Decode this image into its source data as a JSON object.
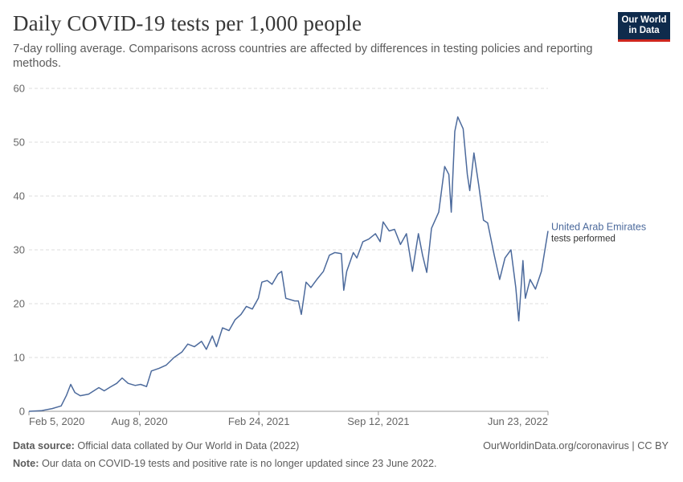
{
  "header": {
    "title": "Daily COVID-19 tests per 1,000 people",
    "subtitle": "7-day rolling average. Comparisons across countries are affected by differences in testing policies and reporting methods."
  },
  "logo": {
    "line1": "Our World",
    "line2": "in Data",
    "bg_color": "#0f2b4c",
    "accent_color": "#ce261e"
  },
  "footer": {
    "source_label": "Data source:",
    "source_text": "Official data collated by Our World in Data (2022)",
    "url_text": "OurWorldinData.org/coronavirus | CC BY",
    "note_label": "Note:",
    "note_text": "Our data on COVID-19 tests and positive rate is no longer updated since 23 June 2022."
  },
  "chart_data": {
    "type": "line",
    "title": "Daily COVID-19 tests per 1,000 people",
    "xlabel": "",
    "ylabel": "",
    "xlim": [
      "2020-02-05",
      "2022-06-23"
    ],
    "ylim": [
      0,
      60
    ],
    "yticks": [
      0,
      10,
      20,
      30,
      40,
      50,
      60
    ],
    "xticks": [
      {
        "date": "2020-02-05",
        "label": "Feb 5, 2020"
      },
      {
        "date": "2020-08-08",
        "label": "Aug 8, 2020"
      },
      {
        "date": "2021-02-24",
        "label": "Feb 24, 2021"
      },
      {
        "date": "2021-09-12",
        "label": "Sep 12, 2021"
      },
      {
        "date": "2022-06-23",
        "label": "Jun 23, 2022"
      }
    ],
    "grid": "horizontal-dashed",
    "series": [
      {
        "name": "United Arab Emirates",
        "annotation": "tests performed",
        "color": "#4c6a9c",
        "points": [
          [
            "2020-02-05",
            0
          ],
          [
            "2020-02-25",
            0.1
          ],
          [
            "2020-03-15",
            0.5
          ],
          [
            "2020-03-30",
            1.0
          ],
          [
            "2020-04-08",
            3.0
          ],
          [
            "2020-04-15",
            5.0
          ],
          [
            "2020-04-22",
            3.5
          ],
          [
            "2020-05-01",
            2.9
          ],
          [
            "2020-05-15",
            3.2
          ],
          [
            "2020-06-01",
            4.4
          ],
          [
            "2020-06-10",
            3.8
          ],
          [
            "2020-06-20",
            4.5
          ],
          [
            "2020-07-01",
            5.2
          ],
          [
            "2020-07-10",
            6.2
          ],
          [
            "2020-07-20",
            5.2
          ],
          [
            "2020-08-01",
            4.8
          ],
          [
            "2020-08-10",
            5.0
          ],
          [
            "2020-08-20",
            4.6
          ],
          [
            "2020-08-28",
            7.5
          ],
          [
            "2020-09-10",
            8.0
          ],
          [
            "2020-09-22",
            8.6
          ],
          [
            "2020-10-05",
            10.0
          ],
          [
            "2020-10-18",
            11.0
          ],
          [
            "2020-10-28",
            12.5
          ],
          [
            "2020-11-08",
            12.0
          ],
          [
            "2020-11-20",
            13.0
          ],
          [
            "2020-11-28",
            11.5
          ],
          [
            "2020-12-08",
            14.0
          ],
          [
            "2020-12-15",
            12.0
          ],
          [
            "2020-12-25",
            15.5
          ],
          [
            "2021-01-05",
            15.0
          ],
          [
            "2021-01-15",
            17.0
          ],
          [
            "2021-01-25",
            18.0
          ],
          [
            "2021-02-03",
            19.5
          ],
          [
            "2021-02-13",
            19.0
          ],
          [
            "2021-02-23",
            21.0
          ],
          [
            "2021-03-01",
            24.0
          ],
          [
            "2021-03-10",
            24.3
          ],
          [
            "2021-03-18",
            23.6
          ],
          [
            "2021-03-28",
            25.5
          ],
          [
            "2021-04-03",
            26.0
          ],
          [
            "2021-04-10",
            21.0
          ],
          [
            "2021-04-25",
            20.5
          ],
          [
            "2021-05-01",
            20.5
          ],
          [
            "2021-05-06",
            18.0
          ],
          [
            "2021-05-14",
            24.0
          ],
          [
            "2021-05-22",
            23.0
          ],
          [
            "2021-06-01",
            24.5
          ],
          [
            "2021-06-12",
            26.0
          ],
          [
            "2021-06-22",
            29.0
          ],
          [
            "2021-07-01",
            29.5
          ],
          [
            "2021-07-12",
            29.3
          ],
          [
            "2021-07-16",
            22.5
          ],
          [
            "2021-07-21",
            26.0
          ],
          [
            "2021-08-01",
            29.5
          ],
          [
            "2021-08-07",
            28.5
          ],
          [
            "2021-08-17",
            31.5
          ],
          [
            "2021-08-27",
            32.0
          ],
          [
            "2021-09-07",
            33.0
          ],
          [
            "2021-09-15",
            31.5
          ],
          [
            "2021-09-20",
            35.2
          ],
          [
            "2021-09-30",
            33.5
          ],
          [
            "2021-10-09",
            33.8
          ],
          [
            "2021-10-19",
            31.0
          ],
          [
            "2021-10-29",
            33.0
          ],
          [
            "2021-11-08",
            26.0
          ],
          [
            "2021-11-18",
            33.0
          ],
          [
            "2021-11-25",
            29.0
          ],
          [
            "2021-12-02",
            25.8
          ],
          [
            "2021-12-10",
            34.0
          ],
          [
            "2021-12-22",
            37.0
          ],
          [
            "2022-01-01",
            45.5
          ],
          [
            "2022-01-08",
            44.0
          ],
          [
            "2022-01-12",
            37.0
          ],
          [
            "2022-01-18",
            52.0
          ],
          [
            "2022-01-23",
            54.7
          ],
          [
            "2022-02-01",
            52.5
          ],
          [
            "2022-02-08",
            44.0
          ],
          [
            "2022-02-12",
            41.0
          ],
          [
            "2022-02-19",
            48.0
          ],
          [
            "2022-02-27",
            42.0
          ],
          [
            "2022-03-07",
            35.5
          ],
          [
            "2022-03-14",
            35.0
          ],
          [
            "2022-03-25",
            29.0
          ],
          [
            "2022-04-03",
            24.5
          ],
          [
            "2022-04-12",
            28.5
          ],
          [
            "2022-04-22",
            30.0
          ],
          [
            "2022-04-30",
            23.0
          ],
          [
            "2022-05-05",
            16.8
          ],
          [
            "2022-05-12",
            28.0
          ],
          [
            "2022-05-16",
            21.0
          ],
          [
            "2022-05-24",
            24.5
          ],
          [
            "2022-06-02",
            22.7
          ],
          [
            "2022-06-12",
            26.0
          ],
          [
            "2022-06-23",
            33.5
          ]
        ]
      }
    ]
  }
}
